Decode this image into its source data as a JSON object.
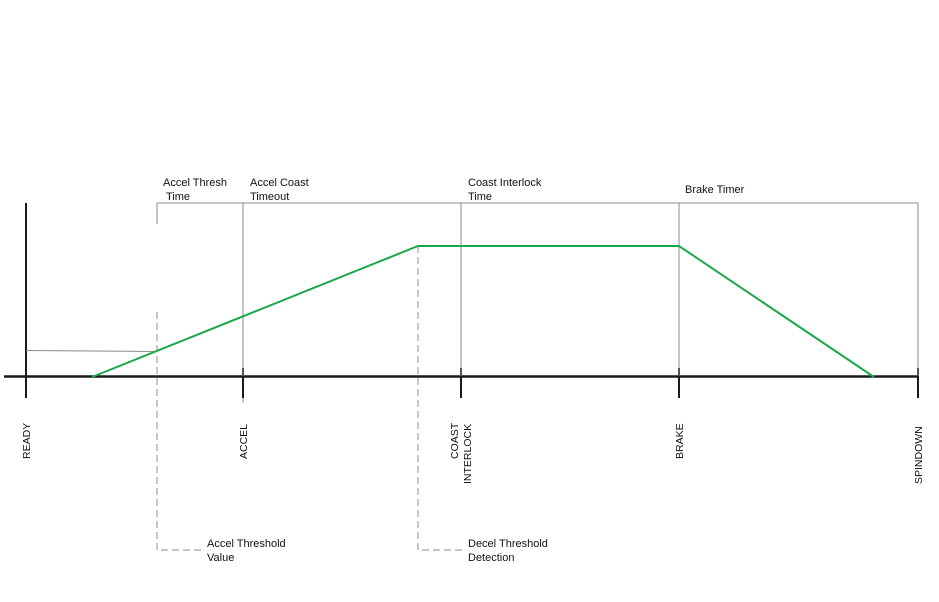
{
  "timer_labels": {
    "accel_thresh_time": [
      "Accel Thresh",
      "Time"
    ],
    "accel_coast_timeout": [
      "Accel Coast",
      "Timeout"
    ],
    "coast_interlock_time": [
      "Coast Interlock",
      "Time"
    ],
    "brake_timer": [
      "Brake Timer"
    ]
  },
  "state_labels": {
    "ready": [
      "READY"
    ],
    "accel": [
      "ACCEL"
    ],
    "coast_interlock": [
      "COAST",
      "INTERLOCK"
    ],
    "brake": [
      "BRAKE"
    ],
    "spindown": [
      "SPINDOWN"
    ]
  },
  "threshold_labels": {
    "accel_threshold_value": [
      "Accel Threshold",
      "Value"
    ],
    "decel_threshold_detection": [
      "Decel Threshold",
      "Detection"
    ]
  },
  "colors": {
    "profile": "#1aa84a",
    "axis": "#1a1a1a",
    "bracket": "#8c8c8c",
    "dashed": "#8c8c8c"
  }
}
